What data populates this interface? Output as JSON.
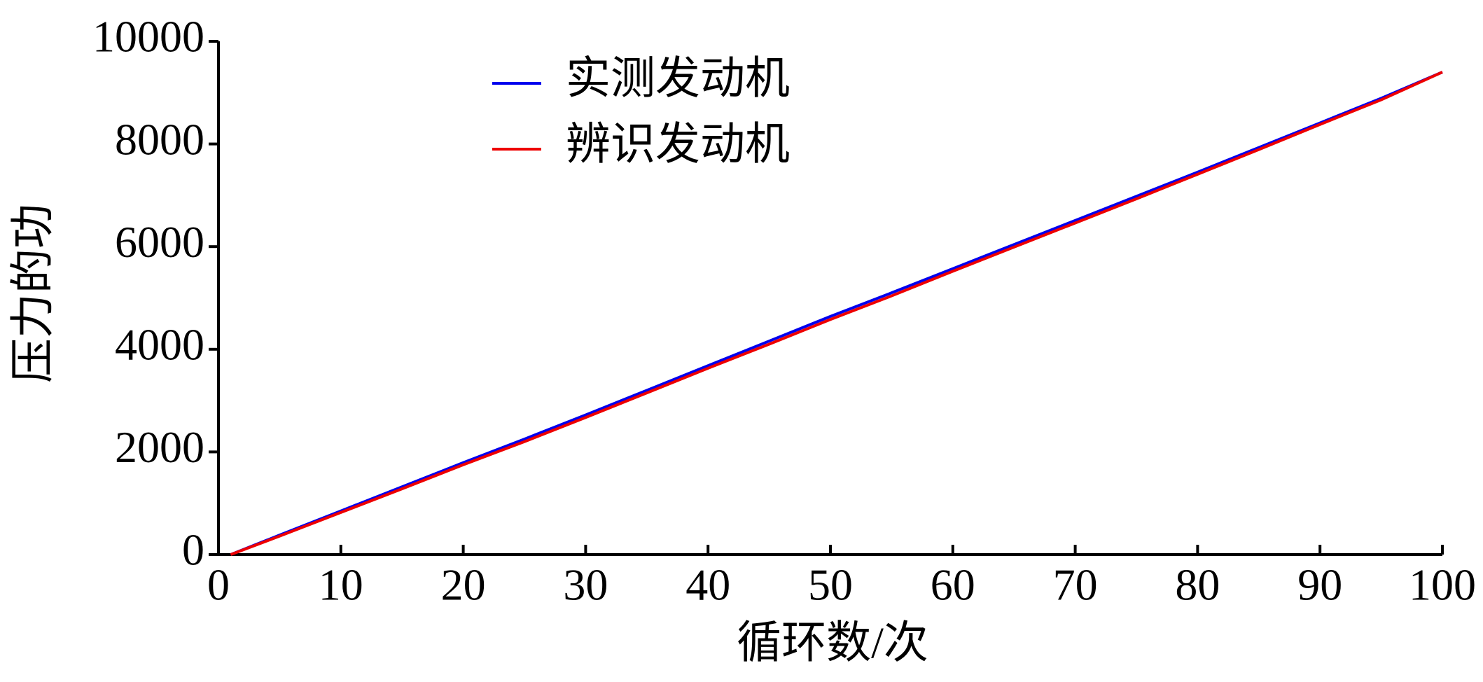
{
  "chart_data": {
    "type": "line",
    "xlabel": "循环数/次",
    "ylabel": "压力的功",
    "x": [
      1,
      5,
      10,
      15,
      20,
      25,
      30,
      35,
      40,
      45,
      50,
      55,
      60,
      65,
      70,
      75,
      80,
      85,
      90,
      95,
      100
    ],
    "series": [
      {
        "name": "实测发动机",
        "color": "#0000ee",
        "values": [
          0,
          380,
          850,
          1320,
          1790,
          2250,
          2720,
          3200,
          3680,
          4160,
          4640,
          5100,
          5570,
          6040,
          6510,
          6980,
          7450,
          7930,
          8410,
          8890,
          9400
        ]
      },
      {
        "name": "辨识发动机",
        "color": "#ee0000",
        "values": [
          0,
          360,
          820,
          1280,
          1750,
          2200,
          2670,
          3150,
          3630,
          4100,
          4580,
          5040,
          5520,
          5990,
          6460,
          6930,
          7410,
          7890,
          8380,
          8860,
          9400
        ]
      }
    ],
    "xlim": [
      0,
      100
    ],
    "ylim": [
      0,
      10000
    ],
    "xticks": [
      0,
      10,
      20,
      30,
      40,
      50,
      60,
      70,
      80,
      90,
      100
    ],
    "yticks": [
      0,
      2000,
      4000,
      6000,
      8000,
      10000
    ],
    "legend": "upper left"
  }
}
